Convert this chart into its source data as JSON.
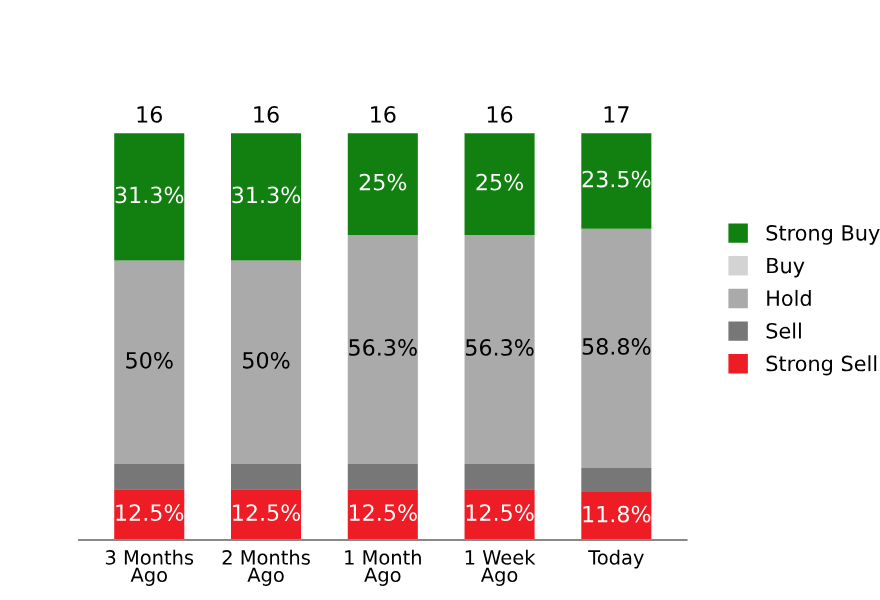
{
  "chart_data": {
    "type": "bar",
    "stacked": true,
    "categories": [
      "3 Months\nAgo",
      "2 Months\nAgo",
      "1 Month\nAgo",
      "1 Week\nAgo",
      "Today"
    ],
    "series": [
      {
        "name": "Strong Sell",
        "color": "#ee1c25",
        "values": [
          12.5,
          12.5,
          12.5,
          12.5,
          11.8
        ],
        "value_labels": [
          "12.5%",
          "12.5%",
          "12.5%",
          "12.5%",
          "11.8%"
        ]
      },
      {
        "name": "Sell",
        "color": "#777777",
        "values": [
          6.2,
          6.2,
          6.2,
          6.2,
          5.9
        ],
        "value_labels": [
          null,
          null,
          null,
          null,
          null
        ]
      },
      {
        "name": "Hold",
        "color": "#aaaaaa",
        "values": [
          50,
          50,
          56.3,
          56.3,
          58.8
        ],
        "value_labels": [
          "50%",
          "50%",
          "56.3%",
          "56.3%",
          "58.8%"
        ]
      },
      {
        "name": "Buy",
        "color": "#d3d3d3",
        "values": [
          0,
          0,
          0,
          0,
          0
        ],
        "value_labels": [
          null,
          null,
          null,
          null,
          null
        ]
      },
      {
        "name": "Strong Buy",
        "color": "#118011",
        "values": [
          31.3,
          31.3,
          25,
          25,
          23.5
        ],
        "value_labels": [
          "31.3%",
          "31.3%",
          "25%",
          "25%",
          "23.5%"
        ]
      }
    ],
    "annotations": [
      {
        "text": "16",
        "x": "3 Months\nAgo",
        "y": 100
      },
      {
        "text": "16",
        "x": "2 Months\nAgo",
        "y": 100
      },
      {
        "text": "16",
        "x": "1 Month\nAgo",
        "y": 100
      },
      {
        "text": "16",
        "x": "1 Week\nAgo",
        "y": 100
      },
      {
        "text": "17",
        "x": "Today",
        "y": 100
      }
    ],
    "legend": "right",
    "grid": false
  }
}
